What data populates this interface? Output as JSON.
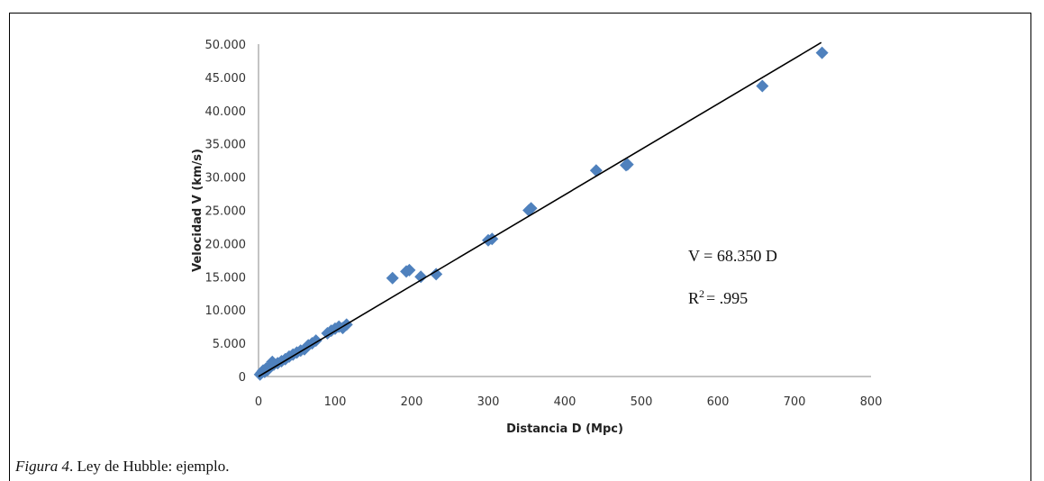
{
  "caption": {
    "label": "Figura 4",
    "text": ". Ley de Hubble: ejemplo."
  },
  "chart_data": {
    "type": "scatter",
    "title": "",
    "xlabel": "Distancia D (Mpc)",
    "ylabel": "Velocidad V (km/s)",
    "xlim": [
      0,
      800
    ],
    "ylim": [
      0,
      50000
    ],
    "x_ticks": [
      "0",
      "100",
      "200",
      "300",
      "400",
      "500",
      "600",
      "700",
      "800"
    ],
    "y_ticks": [
      "0",
      "5.000",
      "10.000",
      "15.000",
      "20.000",
      "25.000",
      "30.000",
      "35.000",
      "40.000",
      "45.000",
      "50.000"
    ],
    "grid": false,
    "marker_color": "#4f81bd",
    "line_color": "#000000",
    "series": [
      {
        "points": [
          [
            2,
            300
          ],
          [
            4,
            600
          ],
          [
            6,
            900
          ],
          [
            8,
            700
          ],
          [
            10,
            1200
          ],
          [
            12,
            1000
          ],
          [
            15,
            1500
          ],
          [
            18,
            2200
          ],
          [
            20,
            1800
          ],
          [
            25,
            2000
          ],
          [
            30,
            2300
          ],
          [
            35,
            2600
          ],
          [
            40,
            3000
          ],
          [
            45,
            3300
          ],
          [
            50,
            3600
          ],
          [
            55,
            3900
          ],
          [
            60,
            4100
          ],
          [
            65,
            4700
          ],
          [
            70,
            5000
          ],
          [
            75,
            5400
          ],
          [
            90,
            6500
          ],
          [
            95,
            6900
          ],
          [
            100,
            7200
          ],
          [
            105,
            7500
          ],
          [
            110,
            7300
          ],
          [
            115,
            7800
          ],
          [
            175,
            14800
          ],
          [
            193,
            15800
          ],
          [
            197,
            16000
          ],
          [
            212,
            15000
          ],
          [
            232,
            15400
          ],
          [
            300,
            20500
          ],
          [
            305,
            20700
          ],
          [
            353,
            25000
          ],
          [
            356,
            25300
          ],
          [
            441,
            31000
          ],
          [
            480,
            31800
          ],
          [
            482,
            31900
          ],
          [
            658,
            43700
          ],
          [
            736,
            48700
          ]
        ]
      }
    ],
    "trendline": {
      "slope": 68.35,
      "x_range": [
        0,
        735
      ]
    },
    "annotations": [
      {
        "id": "equation",
        "text": "V = 68.350 D"
      },
      {
        "id": "r2",
        "label": "R",
        "sup": "2",
        "value": "= .995"
      }
    ]
  }
}
